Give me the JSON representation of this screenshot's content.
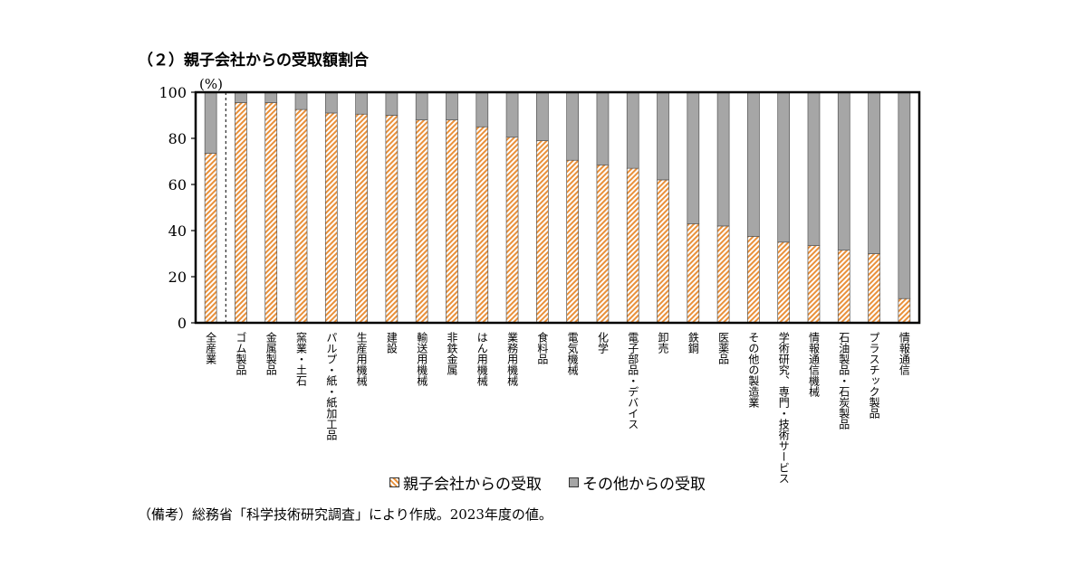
{
  "chart_data": {
    "type": "bar",
    "stacked": true,
    "title": "（２）親子会社からの受取額割合",
    "ylabel": "(%)",
    "ylim": [
      0,
      100
    ],
    "yticks": [
      0,
      20,
      40,
      60,
      80,
      100
    ],
    "categories": [
      "全産業",
      "ゴム製品",
      "金属製品",
      "窯業・土石",
      "パルプ・紙・紙加工品",
      "生産用機械",
      "建設",
      "輸送用機械",
      "非鉄金属",
      "はん用機械",
      "業務用機械",
      "食料品",
      "電気機械",
      "化学",
      "電子部品・デバイス",
      "卸売",
      "鉄鋼",
      "医薬品",
      "その他の製造業",
      "学術研究、専門・技術サービス",
      "情報通信機械",
      "石油製品・石炭製品",
      "プラスチック製品",
      "情報通信"
    ],
    "series": [
      {
        "name": "親子会社からの受取",
        "color": "#e9903a",
        "values": [
          73.5,
          95.5,
          95.5,
          92.5,
          91,
          90.5,
          90,
          88,
          88,
          85,
          80.5,
          79,
          70.5,
          68.5,
          67,
          62,
          43,
          42,
          37.5,
          35,
          33.5,
          31.5,
          30,
          10.5
        ]
      },
      {
        "name": "その他からの受取",
        "color": "#a6a6a6",
        "values": [
          26.5,
          4.5,
          4.5,
          7.5,
          9,
          9.5,
          10,
          12,
          12,
          15,
          19.5,
          21,
          29.5,
          31.5,
          33,
          38,
          57,
          58,
          62.5,
          65,
          66.5,
          68.5,
          70,
          89.5
        ]
      }
    ],
    "legend_position": "bottom",
    "grid": false
  },
  "note": "（備考）総務省「科学技術研究調査」により作成。2023年度の値。"
}
